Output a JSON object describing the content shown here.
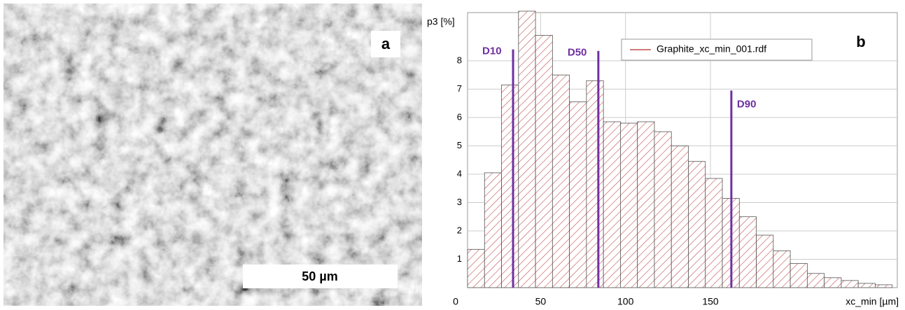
{
  "image_panel": {
    "label": "a",
    "scale_bar": "50 µm"
  },
  "chart_data": {
    "type": "histogram",
    "panel_label": "b",
    "y_label": "p3 [%]",
    "x_label": "xc_min [µm]",
    "bins": [
      7,
      17,
      27,
      37,
      47,
      57,
      67,
      77,
      87,
      97,
      107,
      117,
      127,
      137,
      147,
      157,
      167,
      177,
      187,
      197,
      207,
      217,
      227,
      237,
      247,
      257
    ],
    "series": [
      {
        "name": "Graphite_xc_min_001.rdf",
        "color": "#c0504d",
        "values": [
          1.35,
          4.05,
          7.15,
          9.75,
          8.9,
          7.5,
          6.55,
          7.3,
          5.85,
          5.8,
          5.85,
          5.5,
          5.0,
          4.45,
          3.85,
          3.15,
          2.5,
          1.85,
          1.3,
          0.85,
          0.5,
          0.35,
          0.25,
          0.15,
          0.1
        ]
      }
    ],
    "markers": [
      {
        "label": "D10",
        "x": 33.8,
        "height": 8.4,
        "color": "#7030a0"
      },
      {
        "label": "D50",
        "x": 84,
        "height": 8.35,
        "color": "#7030a0"
      },
      {
        "label": "D90",
        "x": 162.3,
        "height": 6.95,
        "color": "#7030a0"
      }
    ],
    "xlim": [
      7,
      260
    ],
    "ylim": [
      0,
      9.7
    ],
    "xticks": [
      0,
      50,
      100,
      150
    ],
    "yticks": [
      1,
      2,
      3,
      4,
      5,
      6,
      7,
      8
    ],
    "grid": true
  }
}
